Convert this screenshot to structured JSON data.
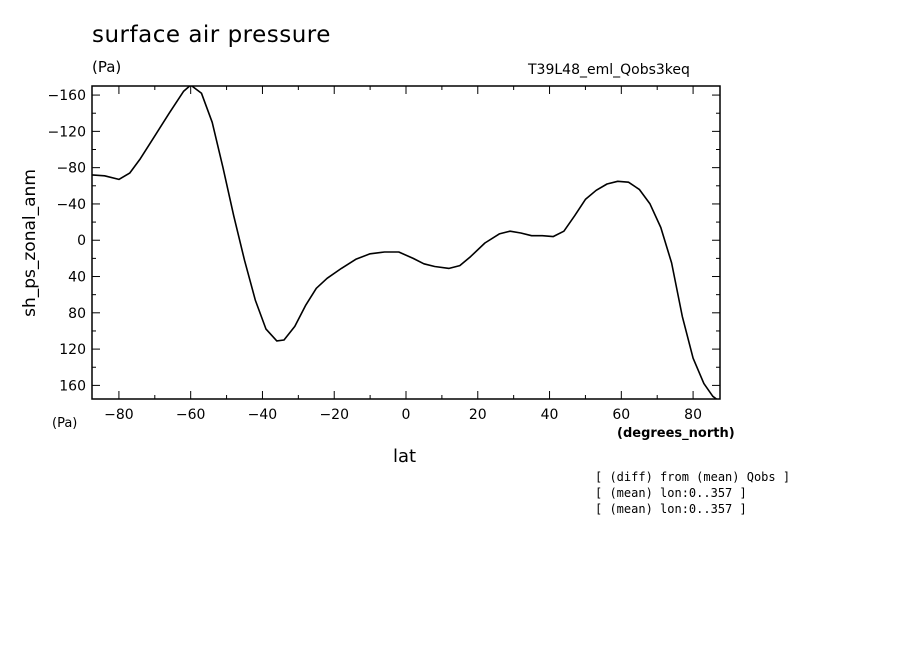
{
  "header": {
    "title": "surface air pressure",
    "units_top": "(Pa)",
    "run_id": "T39L48_eml_Qobs3keq",
    "units_bottom": "(Pa)",
    "x_units": "(degrees_north)"
  },
  "notes": [
    "[ (diff) from (mean) Qobs ]",
    "[ (mean) lon:0..357 ]",
    "[ (mean) lon:0..357 ]"
  ],
  "chart_data": {
    "type": "line",
    "title": "surface air pressure",
    "xlabel": "lat",
    "ylabel": "sh_ps_zonal_anm",
    "xlim": [
      -87.5,
      87.5
    ],
    "ylim": [
      175,
      -170
    ],
    "y_inverted": true,
    "grid": false,
    "x_ticks": [
      -80,
      -60,
      -40,
      -20,
      0,
      20,
      40,
      60,
      80
    ],
    "x_tick_labels": [
      "−80",
      "−60",
      "−40",
      "−20",
      "0",
      "20",
      "40",
      "60",
      "80"
    ],
    "y_ticks": [
      -160,
      -120,
      -80,
      -40,
      0,
      40,
      80,
      120,
      160
    ],
    "y_tick_labels": [
      "−160",
      "−120",
      "−80",
      "−40",
      "0",
      "40",
      "80",
      "120",
      "160"
    ],
    "series": [
      {
        "color": "#000000",
        "x": [
          -87.5,
          -84,
          -80,
          -77,
          -74,
          -70,
          -66,
          -62,
          -60,
          -57,
          -54,
          -51,
          -48,
          -45,
          -42,
          -39,
          -36,
          -34,
          -31,
          -28,
          -25,
          -22,
          -18,
          -14,
          -10,
          -6,
          -2,
          2,
          5,
          8,
          12,
          15,
          18,
          22,
          26,
          29,
          32,
          35,
          38,
          41,
          44,
          47,
          50,
          53,
          56,
          59,
          62,
          65,
          68,
          71,
          74,
          77,
          80,
          83,
          85.5,
          87.5
        ],
        "y": [
          -72,
          -71,
          -67,
          -74,
          -90,
          -115,
          -140,
          -164,
          -171,
          -162,
          -130,
          -80,
          -27,
          22,
          66,
          98,
          111,
          110,
          95,
          72,
          53,
          42,
          31,
          21,
          15,
          13,
          13,
          20,
          26,
          29,
          31,
          28,
          18,
          3,
          -7,
          -10,
          -8,
          -5,
          -5,
          -4,
          -10,
          -27,
          -45,
          -55,
          -62,
          -65,
          -64,
          -56,
          -40,
          -14,
          25,
          84,
          130,
          158,
          172,
          178
        ]
      }
    ]
  }
}
